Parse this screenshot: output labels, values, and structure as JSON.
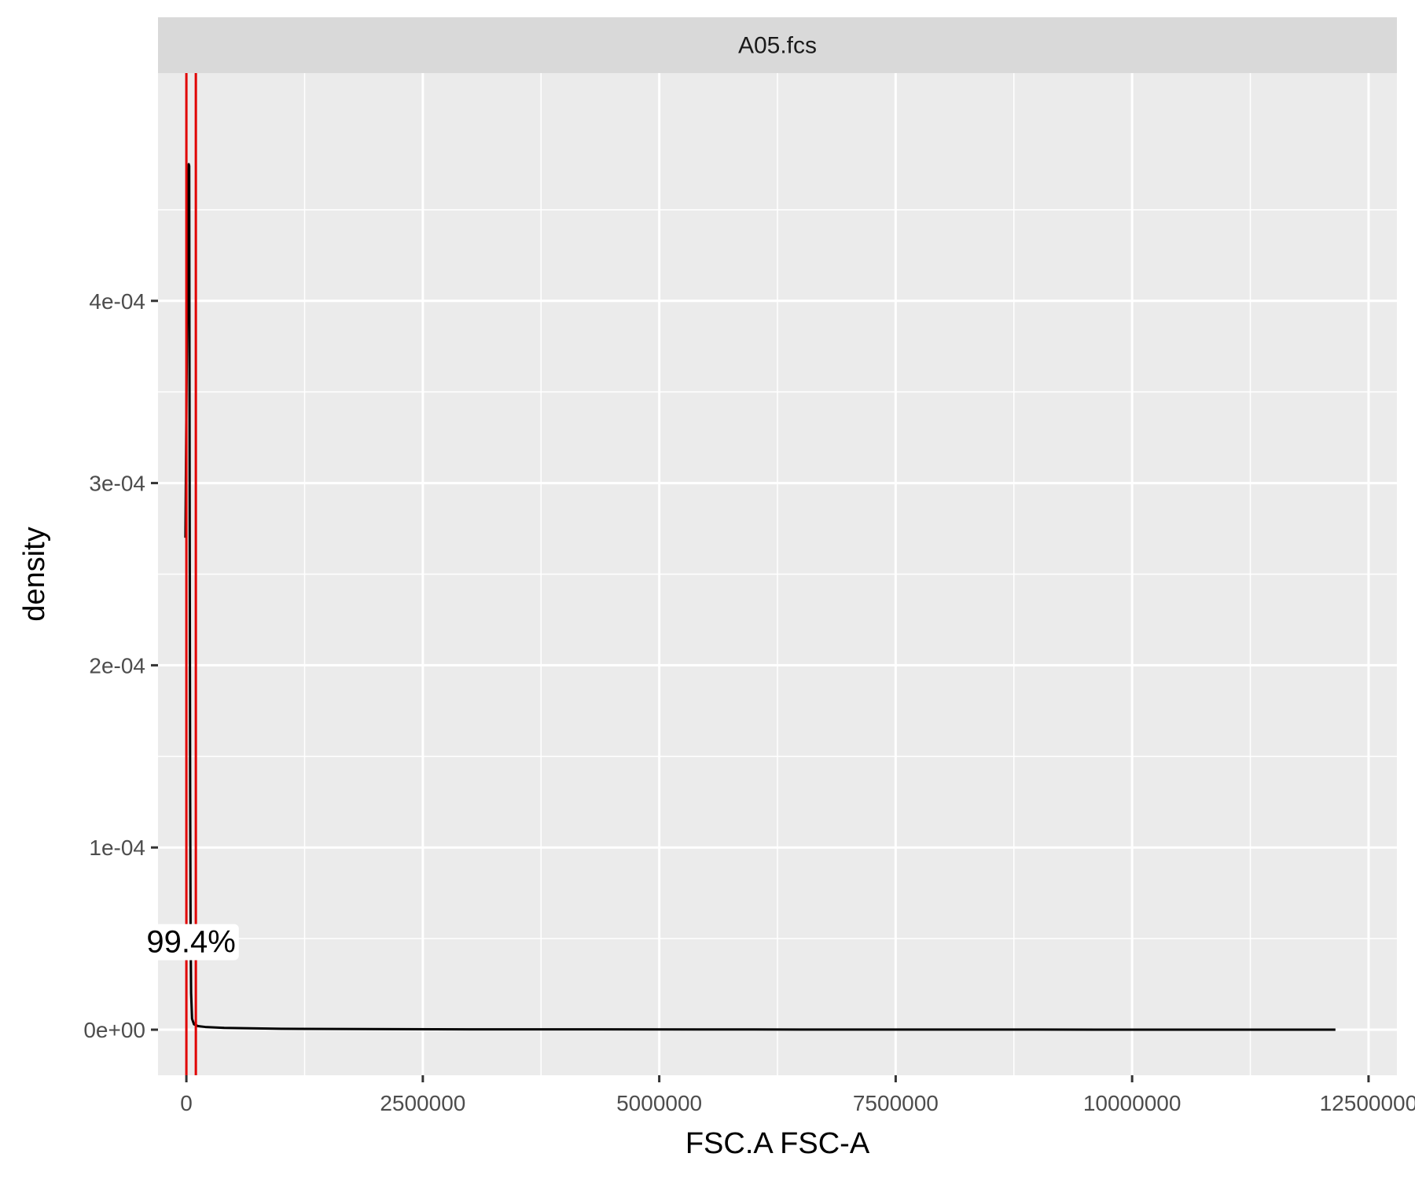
{
  "chart_data": {
    "type": "line",
    "facet_label": "A05.fcs",
    "xlabel": "FSC.A FSC-A",
    "ylabel": "density",
    "xlim": [
      -300000,
      12800000
    ],
    "ylim": [
      -2.5e-05,
      0.000525
    ],
    "x_ticks": [
      {
        "value": 0,
        "label": "0"
      },
      {
        "value": 2500000,
        "label": "2500000"
      },
      {
        "value": 5000000,
        "label": "5000000"
      },
      {
        "value": 7500000,
        "label": "7500000"
      },
      {
        "value": 10000000,
        "label": "10000000"
      },
      {
        "value": 12500000,
        "label": "12500000"
      }
    ],
    "y_ticks": [
      {
        "value": 0,
        "label": "0e+00"
      },
      {
        "value": 0.0001,
        "label": "1e-04"
      },
      {
        "value": 0.0002,
        "label": "2e-04"
      },
      {
        "value": 0.0003,
        "label": "3e-04"
      },
      {
        "value": 0.0004,
        "label": "4e-04"
      }
    ],
    "minor_x": [
      1250000,
      3750000,
      6250000,
      8750000,
      11250000
    ],
    "minor_y": [
      5e-05,
      0.00015,
      0.00025,
      0.00035,
      0.00045
    ],
    "series": [
      {
        "x": [
          -10000,
          0,
          15000,
          25000,
          30000,
          35000,
          40000,
          45000,
          50000,
          60000,
          80000,
          120000,
          200000,
          400000,
          1000000,
          3000000,
          6000000,
          9000000,
          12150000
        ],
        "y": [
          0.00027,
          0.00034,
          0.00044,
          0.000475,
          0.000474,
          0.00028,
          0.00013,
          5e-05,
          2e-05,
          6e-06,
          3e-06,
          2e-06,
          1.5e-06,
          1e-06,
          5e-07,
          2e-07,
          1e-07,
          5e-08,
          0.0
        ]
      }
    ],
    "gates": [
      0,
      100000
    ],
    "gate_annotation": {
      "text": "99.4%",
      "x": 0,
      "y": 4.85e-05
    },
    "colors": {
      "panel_bg": "#ebebeb",
      "strip_bg": "#d9d9d9",
      "grid": "#ffffff",
      "line": "#000000",
      "gate": "#e00000"
    },
    "grid": true,
    "legend": "none"
  }
}
